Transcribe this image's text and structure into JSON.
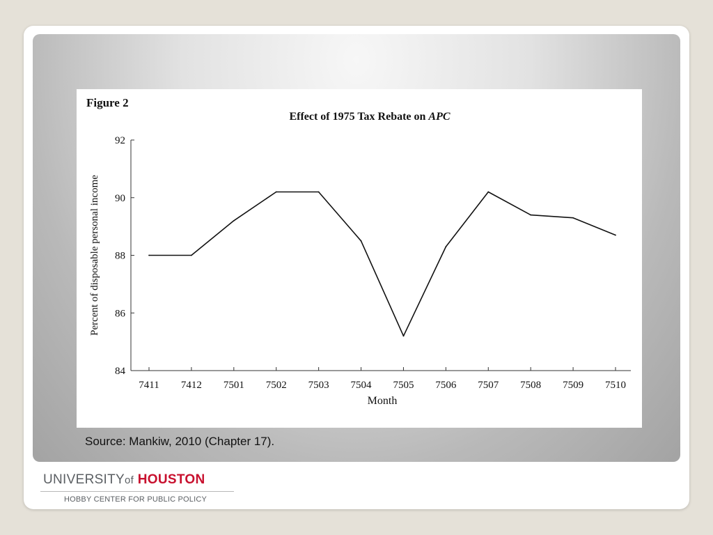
{
  "figure_label": "Figure 2",
  "source_text": "Source: Mankiw, 2010 (Chapter 17).",
  "logo": {
    "university": "UNIVERSITY",
    "of": "of",
    "houston": "HOUSTON",
    "subtitle": "HOBBY CENTER FOR PUBLIC POLICY"
  },
  "colors": {
    "brand_red": "#c8102e",
    "line": "#111111"
  },
  "chart_data": {
    "type": "line",
    "title_prefix": "Effect of 1975 Tax Rebate on ",
    "title_italic": "APC",
    "xlabel": "Month",
    "ylabel": "Percent of disposable personal income",
    "categories": [
      "7411",
      "7412",
      "7501",
      "7502",
      "7503",
      "7504",
      "7505",
      "7506",
      "7507",
      "7508",
      "7509",
      "7510"
    ],
    "series": [
      {
        "values": [
          88.0,
          88.0,
          89.2,
          90.2,
          90.2,
          88.5,
          85.2,
          88.3,
          90.2,
          89.4,
          89.3,
          88.7
        ]
      }
    ],
    "ylim": [
      84,
      92
    ],
    "yticks": [
      84,
      86,
      88,
      90,
      92
    ],
    "grid": false,
    "legend": "none"
  }
}
